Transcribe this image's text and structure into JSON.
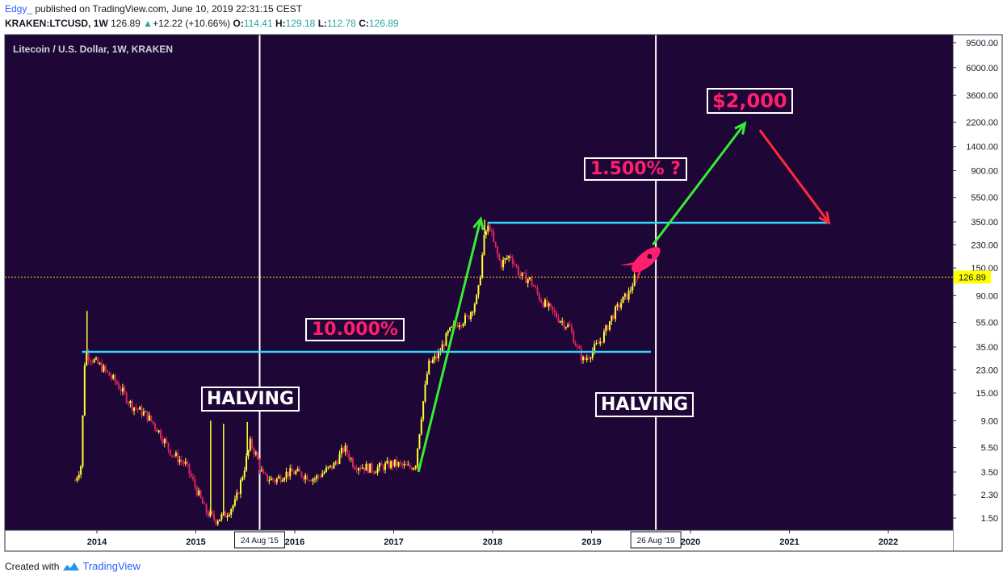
{
  "header": {
    "author": "Edgy_",
    "published": "published on TradingView.com, June 10, 2019 22:31:15 CEST",
    "symbol": "KRAKEN:LTCUSD, 1W",
    "last": "126.89",
    "change": "+12.22 (+10.66%)",
    "o_label": "O:",
    "o": "114.41",
    "h_label": "H:",
    "h": "129.18",
    "l_label": "L:",
    "l": "112.78",
    "c_label": "C:",
    "c": "126.89"
  },
  "footer": {
    "created": "Created with",
    "brand": "TradingView"
  },
  "colors": {
    "background": "#1e0636",
    "candle_up": "#ffff33",
    "candle_down": "#e0245e",
    "level_line": "#33d6ff",
    "arrow_up": "#33ee33",
    "arrow_down": "#ff2a3a",
    "accent_text": "#ff1f6d"
  },
  "chart_data": {
    "type": "candlestick",
    "title": "Litecoin / U.S. Dollar, 1W, KRAKEN",
    "y_scale": "log",
    "ylim": [
      1.2,
      11000
    ],
    "y_ticks": [
      "9500.00",
      "6000.00",
      "3600.00",
      "2200.00",
      "1400.00",
      "900.00",
      "550.00",
      "350.00",
      "230.00",
      "150.00",
      "90.00",
      "55.00",
      "35.00",
      "23.00",
      "15.00",
      "9.00",
      "5.50",
      "3.50",
      "2.30",
      "1.50"
    ],
    "x_ticks": [
      "2014",
      "2015",
      "2016",
      "2017",
      "2018",
      "2019",
      "2020",
      "2021",
      "2022"
    ],
    "xlim": [
      2013.6,
      2022.6
    ],
    "last_price": "126.89",
    "last_price_value": 126.89,
    "halving_markers": [
      {
        "label": "24 Aug '15",
        "date": 2015.645
      },
      {
        "label": "26 Aug '19",
        "date": 2019.65
      }
    ],
    "price_path": [
      [
        2013.78,
        3.0
      ],
      [
        2013.84,
        4.0
      ],
      [
        2013.88,
        32
      ],
      [
        2013.95,
        28
      ],
      [
        2014.05,
        24
      ],
      [
        2014.2,
        18
      ],
      [
        2014.35,
        12
      ],
      [
        2014.5,
        10
      ],
      [
        2014.6,
        8
      ],
      [
        2014.75,
        5.0
      ],
      [
        2014.9,
        4.0
      ],
      [
        2015.0,
        2.6
      ],
      [
        2015.1,
        1.7
      ],
      [
        2015.2,
        1.45
      ],
      [
        2015.3,
        1.6
      ],
      [
        2015.4,
        2.0
      ],
      [
        2015.48,
        3.5
      ],
      [
        2015.55,
        6.0
      ],
      [
        2015.6,
        5.0
      ],
      [
        2015.68,
        3.2
      ],
      [
        2015.8,
        3.0
      ],
      [
        2015.9,
        3.4
      ],
      [
        2016.0,
        3.5
      ],
      [
        2016.2,
        3.1
      ],
      [
        2016.4,
        4.0
      ],
      [
        2016.5,
        5.5
      ],
      [
        2016.6,
        4.0
      ],
      [
        2016.8,
        3.7
      ],
      [
        2017.0,
        4.1
      ],
      [
        2017.15,
        3.8
      ],
      [
        2017.22,
        4.0
      ],
      [
        2017.28,
        10
      ],
      [
        2017.35,
        25
      ],
      [
        2017.45,
        30
      ],
      [
        2017.55,
        45
      ],
      [
        2017.65,
        55
      ],
      [
        2017.75,
        60
      ],
      [
        2017.85,
        90
      ],
      [
        2017.92,
        280
      ],
      [
        2017.97,
        330
      ],
      [
        2018.0,
        250
      ],
      [
        2018.08,
        160
      ],
      [
        2018.18,
        190
      ],
      [
        2018.28,
        130
      ],
      [
        2018.38,
        120
      ],
      [
        2018.48,
        85
      ],
      [
        2018.58,
        70
      ],
      [
        2018.68,
        58
      ],
      [
        2018.78,
        50
      ],
      [
        2018.85,
        35
      ],
      [
        2018.92,
        27
      ],
      [
        2019.0,
        32
      ],
      [
        2019.1,
        40
      ],
      [
        2019.2,
        60
      ],
      [
        2019.3,
        80
      ],
      [
        2019.38,
        95
      ],
      [
        2019.44,
        126.89
      ]
    ],
    "spikes": [
      {
        "date": 2013.9,
        "high": 68
      },
      {
        "date": 2015.15,
        "high": 9
      },
      {
        "date": 2015.28,
        "high": 8.5
      },
      {
        "date": 2015.52,
        "high": 8.8
      },
      {
        "date": 2017.92,
        "high": 365
      }
    ],
    "levels": [
      {
        "value": 32,
        "from": 2013.85,
        "to": 2019.6
      },
      {
        "value": 345,
        "from": 2017.95,
        "to": 2021.4
      }
    ],
    "arrows": [
      {
        "color": "up",
        "from": [
          2017.25,
          3.5
        ],
        "to": [
          2017.88,
          370
        ]
      },
      {
        "color": "up",
        "from": [
          2019.62,
          230
        ],
        "to": [
          2020.55,
          2150
        ]
      },
      {
        "color": "down",
        "from": [
          2020.7,
          1900
        ],
        "to": [
          2021.4,
          345
        ]
      }
    ],
    "annotations": [
      {
        "text": "HALVING",
        "style": "white"
      },
      {
        "text": "HALVING",
        "style": "white"
      },
      {
        "text": "10.000%",
        "style": "pink"
      },
      {
        "text": "1.500% ?",
        "style": "pink"
      },
      {
        "text": "$2,000",
        "style": "pink"
      }
    ]
  }
}
